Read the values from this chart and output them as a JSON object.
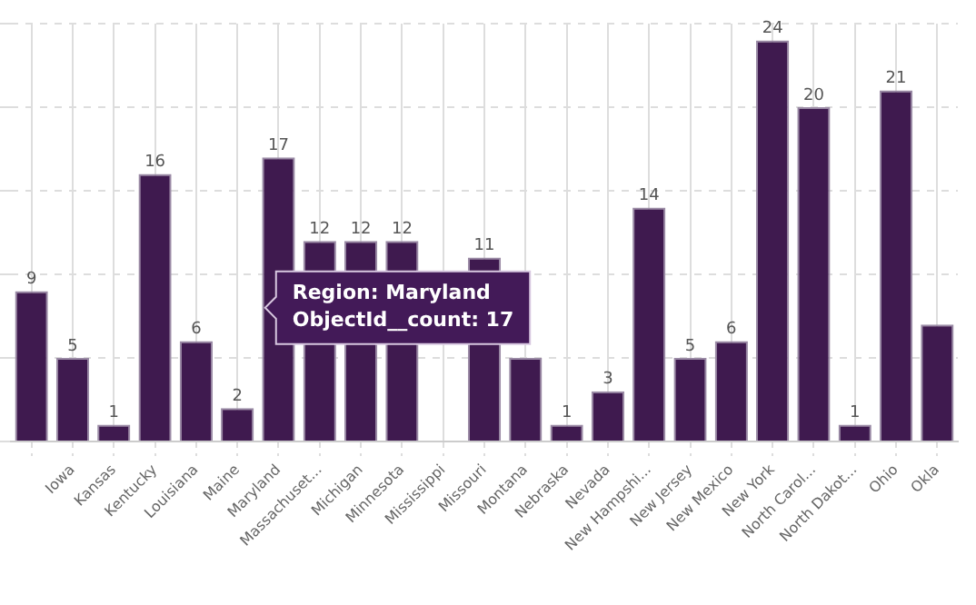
{
  "chart_data": {
    "type": "bar",
    "categories": [
      null,
      "Iowa",
      "Kansas",
      "Kentucky",
      "Louisiana",
      "Maine",
      "Maryland",
      "Massachuset...",
      "Michigan",
      "Minnesota",
      "Mississippi",
      "Missouri",
      "Montana",
      "Nebraska",
      "Nevada",
      "New Hampshi...",
      "New Jersey",
      "New Mexico",
      "New York",
      "North Carol...",
      "North Dakot...",
      "Ohio",
      "Okla"
    ],
    "values": [
      9,
      5,
      1,
      16,
      6,
      2,
      17,
      12,
      12,
      12,
      null,
      11,
      5,
      1,
      3,
      14,
      5,
      6,
      24,
      20,
      1,
      21,
      7
    ],
    "value_labels": [
      "9",
      "5",
      "1",
      "16",
      "6",
      "2",
      "17",
      "12",
      "12",
      "12",
      null,
      "11",
      null,
      "1",
      "3",
      "14",
      "5",
      "6",
      "24",
      "20",
      "1",
      "21",
      null
    ],
    "color": "#3f1a4f",
    "ylim": [
      0,
      25
    ],
    "yticks": [
      {
        "value": 0,
        "label": null
      },
      {
        "value": 5,
        "label": null
      },
      {
        "value": 10,
        "label": null
      },
      {
        "value": 15,
        "label": null
      },
      {
        "value": 20,
        "label": null
      },
      {
        "value": 25,
        "label": null
      }
    ],
    "tick_labels": "x",
    "grid": true,
    "legend": false,
    "annotations": [
      "Region: Maryland\nObjectId__count: 17"
    ]
  }
}
